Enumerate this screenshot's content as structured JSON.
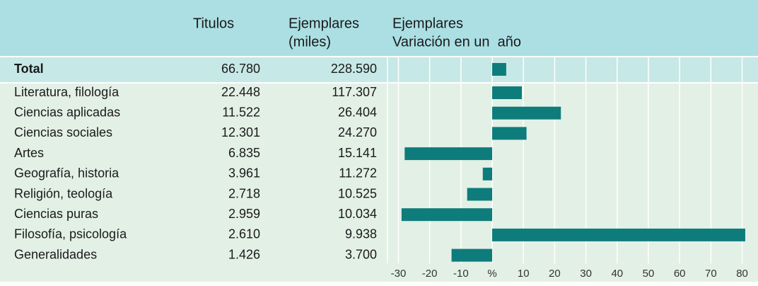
{
  "header": {
    "titulos": "Titulos",
    "ejemplares": [
      "Ejemplares",
      "(miles)"
    ],
    "variacion": [
      "Ejemplares",
      "Variación en un  año"
    ]
  },
  "table": {
    "rows": [
      [
        "Total",
        "66.780",
        "228.590"
      ],
      [
        "Literatura, filología",
        "22.448",
        "117.307"
      ],
      [
        "Ciencias aplicadas",
        "11.522",
        "26.404"
      ],
      [
        "Ciencias sociales",
        "12.301",
        "24.270"
      ],
      [
        "Artes",
        "6.835",
        "15.141"
      ],
      [
        "Geografía, historia",
        "3.961",
        "11.272"
      ],
      [
        "Religión, teología",
        "2.718",
        "10.525"
      ],
      [
        "Ciencias puras",
        "2.959",
        "10.034"
      ],
      [
        "Filosofía, psicología",
        "2.610",
        "9.938"
      ],
      [
        "Generalidades",
        "1.426",
        "3.700"
      ]
    ]
  },
  "chart_data": {
    "type": "bar",
    "orientation": "horizontal",
    "values": [
      4.5,
      9.5,
      22,
      11,
      -28,
      -3,
      -8,
      -29,
      81,
      -13
    ],
    "color": "#0e7c7b",
    "xlim": [
      -33.5,
      83.5
    ],
    "xticks": [
      -30,
      -20,
      -10,
      {
        "value": 0,
        "label": "%"
      },
      10,
      20,
      30,
      40,
      50,
      60,
      70,
      80
    ],
    "grid": true
  }
}
